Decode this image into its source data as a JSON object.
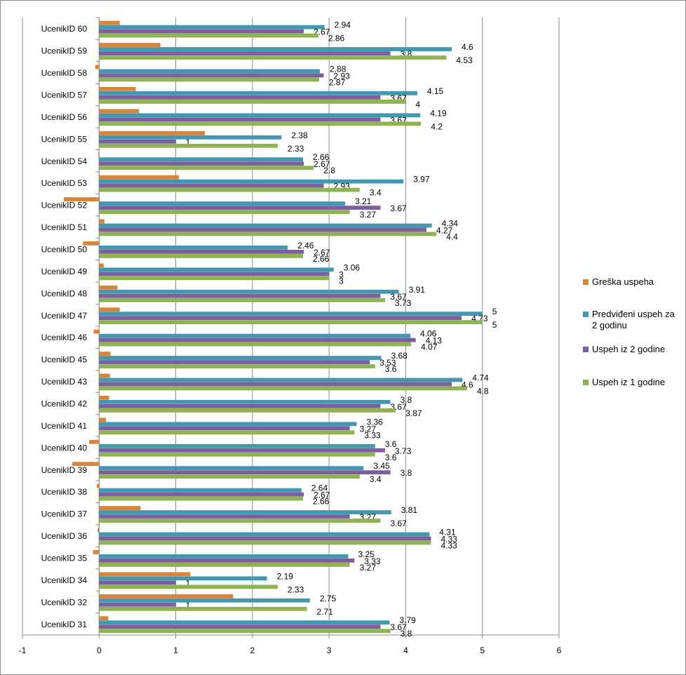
{
  "chart_data": {
    "type": "bar",
    "orientation": "horizontal",
    "title": "",
    "xlabel": "",
    "ylabel": "",
    "xlim": [
      -1,
      6
    ],
    "x_ticks": [
      "-1",
      "0",
      "1",
      "2",
      "3",
      "4",
      "5",
      "6"
    ],
    "grid": "vertical",
    "legend_position": "right",
    "categories": [
      "UcenikID 60",
      "UcenikID 59",
      "UcenikID 58",
      "UcenikID 57",
      "UcenikID 56",
      "UcenikID 55",
      "UcenikID 54",
      "UcenikID 53",
      "UcenikID 52",
      "UcenikID 51",
      "UcenikID 50",
      "UcenikID 49",
      "UcenikID 48",
      "UcenikID 47",
      "UcenikID 46",
      "UcenikID 45",
      "UcenikID 43",
      "UcenikID 42",
      "UcenikID 41",
      "UcenikID 40",
      "UcenikID 39",
      "UcenikID 38",
      "UcenikID 37",
      "UcenikID 36",
      "UcenikID 35",
      "UcenikID 34",
      "UcenikID 32",
      "UcenikID 31"
    ],
    "series": [
      {
        "name": "Greška uspeha",
        "color": "#d9843b",
        "show_labels": false,
        "values": [
          0.27,
          0.8,
          -0.05,
          0.48,
          0.52,
          1.38,
          -0.01,
          1.04,
          -0.46,
          0.07,
          -0.21,
          0.06,
          0.24,
          0.27,
          -0.07,
          0.15,
          0.14,
          0.13,
          0.09,
          -0.13,
          -0.35,
          -0.03,
          0.54,
          -0.02,
          -0.08,
          1.19,
          1.75,
          0.12
        ]
      },
      {
        "name": "Predviđeni uspeh za 2 godinu",
        "color": "#4198af",
        "show_labels": true,
        "values": [
          2.94,
          4.6,
          2.88,
          4.15,
          4.19,
          2.38,
          2.66,
          3.97,
          3.21,
          4.34,
          2.46,
          3.06,
          3.91,
          5,
          4.06,
          3.68,
          4.74,
          3.8,
          3.36,
          3.6,
          3.45,
          2.64,
          3.81,
          4.31,
          3.25,
          2.19,
          2.75,
          3.79
        ],
        "labels": [
          "2.94",
          "4.6",
          "2.88",
          "4.15",
          "4.19",
          "2.38",
          "2.66",
          "3.97",
          "3.21",
          "4.34",
          "2.46",
          "3.06",
          "3.91",
          "5",
          "4.06",
          "3.68",
          "4.74",
          "3.8",
          "3.36",
          "3.6",
          "3.45",
          "2.64",
          "3.81",
          "4.31",
          "3.25",
          "2.19",
          "2.75",
          "3.79"
        ]
      },
      {
        "name": "Uspeh iz 2 godine",
        "color": "#7d5fa0",
        "show_labels": true,
        "values": [
          2.67,
          3.8,
          2.93,
          3.67,
          3.67,
          1,
          2.67,
          2.93,
          3.67,
          4.27,
          2.67,
          3,
          3.67,
          4.73,
          4.13,
          3.53,
          4.6,
          3.67,
          3.27,
          3.73,
          3.8,
          2.67,
          3.27,
          4.33,
          3.33,
          1,
          1,
          3.67
        ],
        "labels": [
          "2.67",
          "3.8",
          "2.93",
          "3.67",
          "3.67",
          "1",
          "2.67",
          "2.93",
          "3.67",
          "4.27",
          "2.67",
          "3",
          "3.67",
          "4.73",
          "4.13",
          "3.53",
          "4.6",
          "3.67",
          "3.27",
          "3.73",
          "3.8",
          "2.67",
          "3.27",
          "4.33",
          "3.33",
          "1",
          "1",
          "3.67"
        ]
      },
      {
        "name": "Uspeh iz 1 godine",
        "color": "#8fb253",
        "show_labels": true,
        "values": [
          2.86,
          4.53,
          2.87,
          4,
          4.2,
          2.33,
          2.8,
          3.4,
          3.27,
          4.4,
          2.66,
          3,
          3.73,
          5,
          4.07,
          3.6,
          4.8,
          3.87,
          3.33,
          3.6,
          3.4,
          2.66,
          3.67,
          4.33,
          3.27,
          2.33,
          2.71,
          3.8
        ],
        "labels": [
          "2.86",
          "4.53",
          "2.87",
          "4",
          "4.2",
          "2.33",
          "2.8",
          "3.4",
          "3.27",
          "4.4",
          "2.66",
          "3",
          "3.73",
          "5",
          "4.07",
          "3.6",
          "4.8",
          "3.87",
          "3.33",
          "3.6",
          "3.4",
          "2.66",
          "3.67",
          "4.33",
          "3.27",
          "2.33",
          "2.71",
          "3.8"
        ]
      }
    ]
  }
}
